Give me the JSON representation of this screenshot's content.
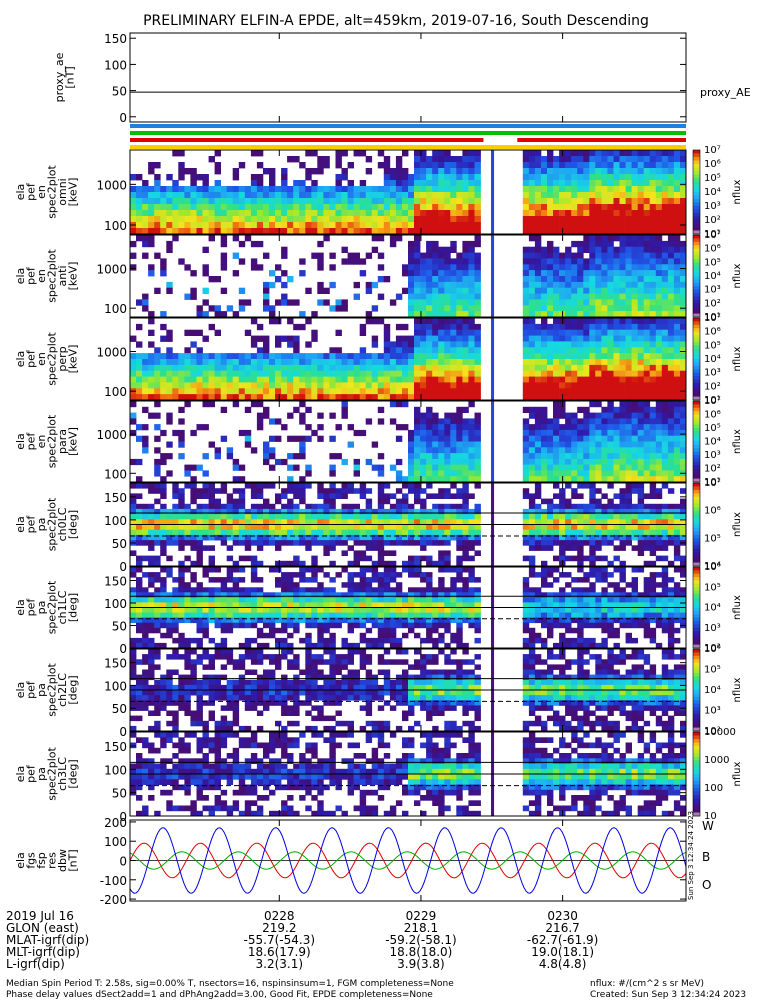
{
  "title": "PRELIMINARY ELFIN-A EPDE, alt=459km, 2019-07-16, South Descending",
  "chart_data": [
    {
      "type": "line",
      "id": "proxy_ae",
      "ylabel_lines": [
        "proxy_ae",
        "[nT]"
      ],
      "yticks": [
        0,
        50,
        100,
        150
      ],
      "ylim": [
        -10,
        160
      ],
      "series": [
        {
          "name": "proxy_AE",
          "color": "#000000",
          "values": [
            47,
            47
          ]
        }
      ]
    },
    {
      "type": "heatmap",
      "id": "spec_omni",
      "ylabel_lines": [
        "ela",
        "pef",
        "en",
        "spec2plot",
        "omni",
        "[keV]"
      ],
      "yticks": [
        100,
        1000
      ],
      "ylog": true,
      "ylim": [
        60,
        7000
      ],
      "colorbar": {
        "label": "nflux",
        "ticks": [
          "10^1",
          "10^2",
          "10^3",
          "10^4",
          "10^5",
          "10^6",
          "10^7"
        ]
      }
    },
    {
      "type": "heatmap",
      "id": "spec_anti",
      "ylabel_lines": [
        "ela",
        "pef",
        "en",
        "spec2plot",
        "anti",
        "[keV]"
      ],
      "yticks": [
        100,
        1000
      ],
      "ylog": true,
      "ylim": [
        60,
        7000
      ],
      "colorbar": {
        "label": "nflux",
        "ticks": [
          "10^1",
          "10^2",
          "10^3",
          "10^4",
          "10^5",
          "10^6",
          "10^7"
        ]
      }
    },
    {
      "type": "heatmap",
      "id": "spec_perp",
      "ylabel_lines": [
        "ela",
        "pef",
        "en",
        "spec2plot",
        "perp",
        "[keV]"
      ],
      "yticks": [
        100,
        1000
      ],
      "ylog": true,
      "ylim": [
        60,
        7000
      ],
      "colorbar": {
        "label": "nflux",
        "ticks": [
          "10^1",
          "10^2",
          "10^3",
          "10^4",
          "10^5",
          "10^6",
          "10^7"
        ]
      }
    },
    {
      "type": "heatmap",
      "id": "spec_para",
      "ylabel_lines": [
        "ela",
        "pef",
        "en",
        "spec2plot",
        "para",
        "[keV]"
      ],
      "yticks": [
        100,
        1000
      ],
      "ylog": true,
      "ylim": [
        60,
        7000
      ],
      "colorbar": {
        "label": "nflux",
        "ticks": [
          "10^1",
          "10^2",
          "10^3",
          "10^4",
          "10^5",
          "10^6",
          "10^7"
        ]
      }
    },
    {
      "type": "heatmap",
      "id": "pa_ch0",
      "ylabel_lines": [
        "ela",
        "pef",
        "pa",
        "spec2plot",
        "ch0LC",
        "[deg]"
      ],
      "yticks": [
        0,
        50,
        100,
        150
      ],
      "ylim": [
        0,
        180
      ],
      "colorbar": {
        "label": "nflux",
        "ticks": [
          "10^4",
          "10^5",
          "10^6",
          "10^7"
        ]
      }
    },
    {
      "type": "heatmap",
      "id": "pa_ch1",
      "ylabel_lines": [
        "ela",
        "pef",
        "pa",
        "spec2plot",
        "ch1LC",
        "[deg]"
      ],
      "yticks": [
        0,
        50,
        100,
        150
      ],
      "ylim": [
        0,
        180
      ],
      "colorbar": {
        "label": "nflux",
        "ticks": [
          "10^2",
          "10^3",
          "10^4",
          "10^5",
          "10^6"
        ]
      }
    },
    {
      "type": "heatmap",
      "id": "pa_ch2",
      "ylabel_lines": [
        "ela",
        "pef",
        "pa",
        "spec2plot",
        "ch2LC",
        "[deg]"
      ],
      "yticks": [
        0,
        50,
        100,
        150
      ],
      "ylim": [
        0,
        180
      ],
      "colorbar": {
        "label": "nflux",
        "ticks": [
          "10^2",
          "10^3",
          "10^4",
          "10^5",
          "10^6"
        ]
      }
    },
    {
      "type": "heatmap",
      "id": "pa_ch3",
      "ylabel_lines": [
        "ela",
        "pef",
        "pa",
        "spec2plot",
        "ch3LC",
        "[deg]"
      ],
      "yticks": [
        0,
        50,
        100,
        150
      ],
      "ylim": [
        0,
        180
      ],
      "colorbar": {
        "label": "nflux",
        "ticks": [
          "10",
          "100",
          "1000",
          "10000"
        ]
      }
    },
    {
      "type": "line",
      "id": "fgs",
      "ylabel_lines": [
        "ela",
        "fgs",
        "fsp",
        "res",
        "dbw",
        "[nT]"
      ],
      "yticks": [
        -200,
        -100,
        0,
        100,
        200
      ],
      "ylim": [
        -210,
        210
      ],
      "series": [
        {
          "name": "W",
          "color": "#e00000",
          "amplitude": 90,
          "period_min": 0.37
        },
        {
          "name": "B",
          "color": "#00b000",
          "amplitude": 45,
          "period_min": 0.37
        },
        {
          "name": "O",
          "color": "#0000e0",
          "amplitude": 170,
          "period_min": 0.37
        }
      ]
    }
  ],
  "xaxis": {
    "start_min": 0,
    "end_min": 36.5,
    "ticks": [
      {
        "min": 9.8,
        "label": "0228"
      },
      {
        "min": 19.1,
        "label": "0229"
      },
      {
        "min": 28.4,
        "label": "0230"
      }
    ]
  },
  "ephemeris": {
    "rows": [
      {
        "label": "2019 Jul 16",
        "values": [
          "0228",
          "0229",
          "0230"
        ]
      },
      {
        "label": "GLON (east)",
        "values": [
          "219.2",
          "218.1",
          "216.7"
        ]
      },
      {
        "label": "MLAT-igrf(dip)",
        "values": [
          "-55.7(-54.3)",
          "-59.2(-58.1)",
          "-62.7(-61.9)"
        ]
      },
      {
        "label": "MLT-igrf(dip)",
        "values": [
          "18.6(17.9)",
          "18.8(18.0)",
          "19.0(18.1)"
        ]
      },
      {
        "label": "L-igrf(dip)",
        "values": [
          "3.2(3.1)",
          "3.9(3.8)",
          "4.8(4.8)"
        ]
      }
    ]
  },
  "footer": {
    "line1": "Median Spin Period T: 2.58s, sig=0.00% T, nsectors=16, nspinsinsum=1, FGM completeness=None",
    "line2": "Phase delay values dSect2add=1 and dPhAng2add=3.00, Good Fit, EPDE completeness=None",
    "right1": "nflux: #/(cm^2 s sr MeV)",
    "right2": "Created: Sun Sep  3 12:34:24 2023",
    "stamp": "Sun Sep  3 12:34:24 2023"
  },
  "status_bars": [
    "#1f7fe0",
    "#00c000",
    "#e00000",
    "#ffcc00"
  ]
}
